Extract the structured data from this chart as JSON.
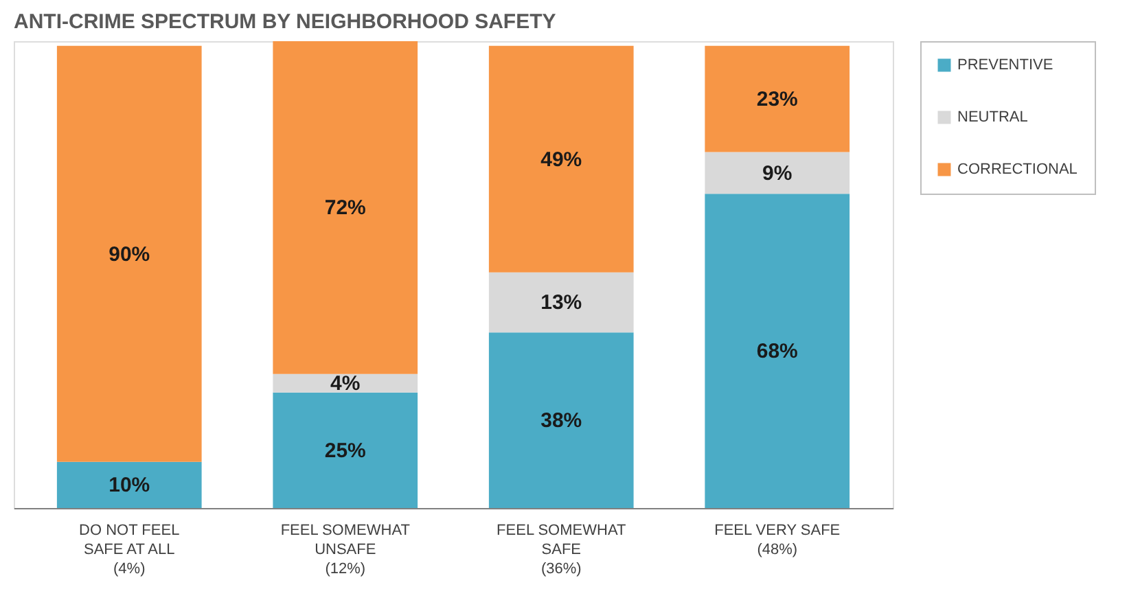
{
  "chart_data": {
    "type": "bar",
    "title": "ANTI-CRIME SPECTRUM BY NEIGHBORHOOD SAFETY",
    "categories": [
      "DO NOT FEEL SAFE AT ALL (4%)",
      "FEEL SOMEWHAT UNSAFE (12%)",
      "FEEL SOMEWHAT SAFE (36%)",
      "FEEL VERY SAFE (48%)"
    ],
    "stacked": true,
    "legend": "right",
    "series": [
      {
        "name": "PREVENTIVE",
        "color": "#4bacc6",
        "values": [
          10,
          25,
          38,
          68
        ],
        "value_labels": [
          "10%",
          "25%",
          "38%",
          "68%"
        ]
      },
      {
        "name": "NEUTRAL",
        "color": "#d9d9d9",
        "values": [
          null,
          4,
          13,
          9
        ],
        "value_labels": [
          null,
          "4%",
          "13%",
          "9%"
        ]
      },
      {
        "name": "CORRECTIONAL",
        "color": "#f79646",
        "values": [
          90,
          72,
          49,
          23
        ],
        "value_labels": [
          "90%",
          "72%",
          "49%",
          "23%"
        ]
      }
    ]
  }
}
